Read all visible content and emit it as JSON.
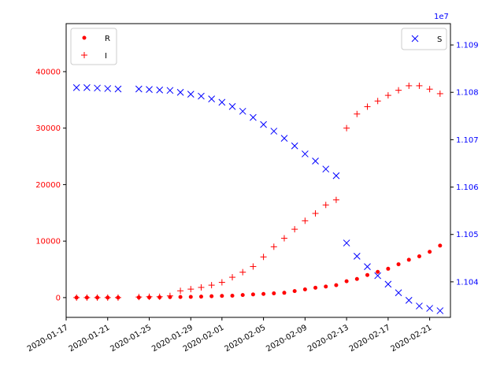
{
  "chart_data": {
    "type": "scatter",
    "title": "",
    "xlabel": "",
    "x_ticks": [
      "2020-01-17",
      "2020-01-21",
      "2020-01-25",
      "2020-01-29",
      "2020-02-01",
      "2020-02-05",
      "2020-02-09",
      "2020-02-13",
      "2020-02-17",
      "2020-02-21"
    ],
    "x": [
      "2020-01-18",
      "2020-01-19",
      "2020-01-20",
      "2020-01-21",
      "2020-01-22",
      "2020-01-24",
      "2020-01-25",
      "2020-01-26",
      "2020-01-27",
      "2020-01-28",
      "2020-01-29",
      "2020-01-30",
      "2020-01-31",
      "2020-02-01",
      "2020-02-02",
      "2020-02-03",
      "2020-02-04",
      "2020-02-05",
      "2020-02-06",
      "2020-02-07",
      "2020-02-08",
      "2020-02-09",
      "2020-02-10",
      "2020-02-11",
      "2020-02-12",
      "2020-02-13",
      "2020-02-14",
      "2020-02-15",
      "2020-02-16",
      "2020-02-17",
      "2020-02-18",
      "2020-02-19",
      "2020-02-20",
      "2020-02-21",
      "2020-02-22"
    ],
    "xlim": [
      "2020-01-17",
      "2020-02-23"
    ],
    "left_axis": {
      "color": "#ff0000",
      "ylim": [
        -3500,
        48500
      ],
      "ticks": [
        0,
        10000,
        20000,
        30000,
        40000
      ],
      "tick_labels": [
        "0",
        "10000",
        "20000",
        "30000",
        "40000"
      ]
    },
    "right_axis": {
      "color": "#0000ff",
      "ylim": [
        11032500,
        11094500
      ],
      "ticks": [
        11040000,
        11050000,
        11060000,
        11070000,
        11080000,
        11090000
      ],
      "tick_labels": [
        "1.104",
        "1.105",
        "1.106",
        "1.107",
        "1.108",
        "1.109"
      ],
      "offset_text": "1e7"
    },
    "series": [
      {
        "name": "R",
        "axis": "left",
        "marker": "dot",
        "color": "#ff0000",
        "values": [
          0,
          0,
          0,
          0,
          0,
          30,
          45,
          60,
          85,
          110,
          130,
          170,
          240,
          300,
          330,
          450,
          560,
          650,
          750,
          850,
          1150,
          1450,
          1750,
          1950,
          2200,
          2900,
          3300,
          4000,
          4550,
          5100,
          5900,
          6700,
          7300,
          8100,
          9200
        ]
      },
      {
        "name": "I",
        "axis": "left",
        "marker": "plus",
        "color": "#ff0000",
        "values": [
          0,
          0,
          0,
          0,
          0,
          100,
          150,
          150,
          300,
          1200,
          1500,
          1800,
          2200,
          2700,
          3600,
          4500,
          5500,
          7200,
          9000,
          10500,
          12100,
          13600,
          14900,
          16400,
          17300,
          30000,
          32500,
          33800,
          34800,
          35800,
          36700,
          37500,
          37500,
          36900,
          36100
        ]
      },
      {
        "name": "S",
        "axis": "right",
        "marker": "x",
        "color": "#0000ff",
        "values": [
          11081000,
          11081000,
          11080900,
          11080800,
          11080700,
          11080700,
          11080600,
          11080500,
          11080400,
          11080000,
          11079600,
          11079200,
          11078600,
          11077900,
          11077000,
          11076000,
          11074700,
          11073200,
          11071800,
          11070300,
          11068700,
          11067000,
          11065500,
          11063800,
          11062400,
          11048200,
          11045400,
          11043200,
          11041300,
          11039500,
          11037700,
          11036100,
          11034900,
          11034400,
          11033900
        ]
      }
    ],
    "legend_left": {
      "placement": "upper-left",
      "entries": [
        "R",
        "I"
      ]
    },
    "legend_right": {
      "placement": "upper-right",
      "entries": [
        "S"
      ]
    }
  }
}
